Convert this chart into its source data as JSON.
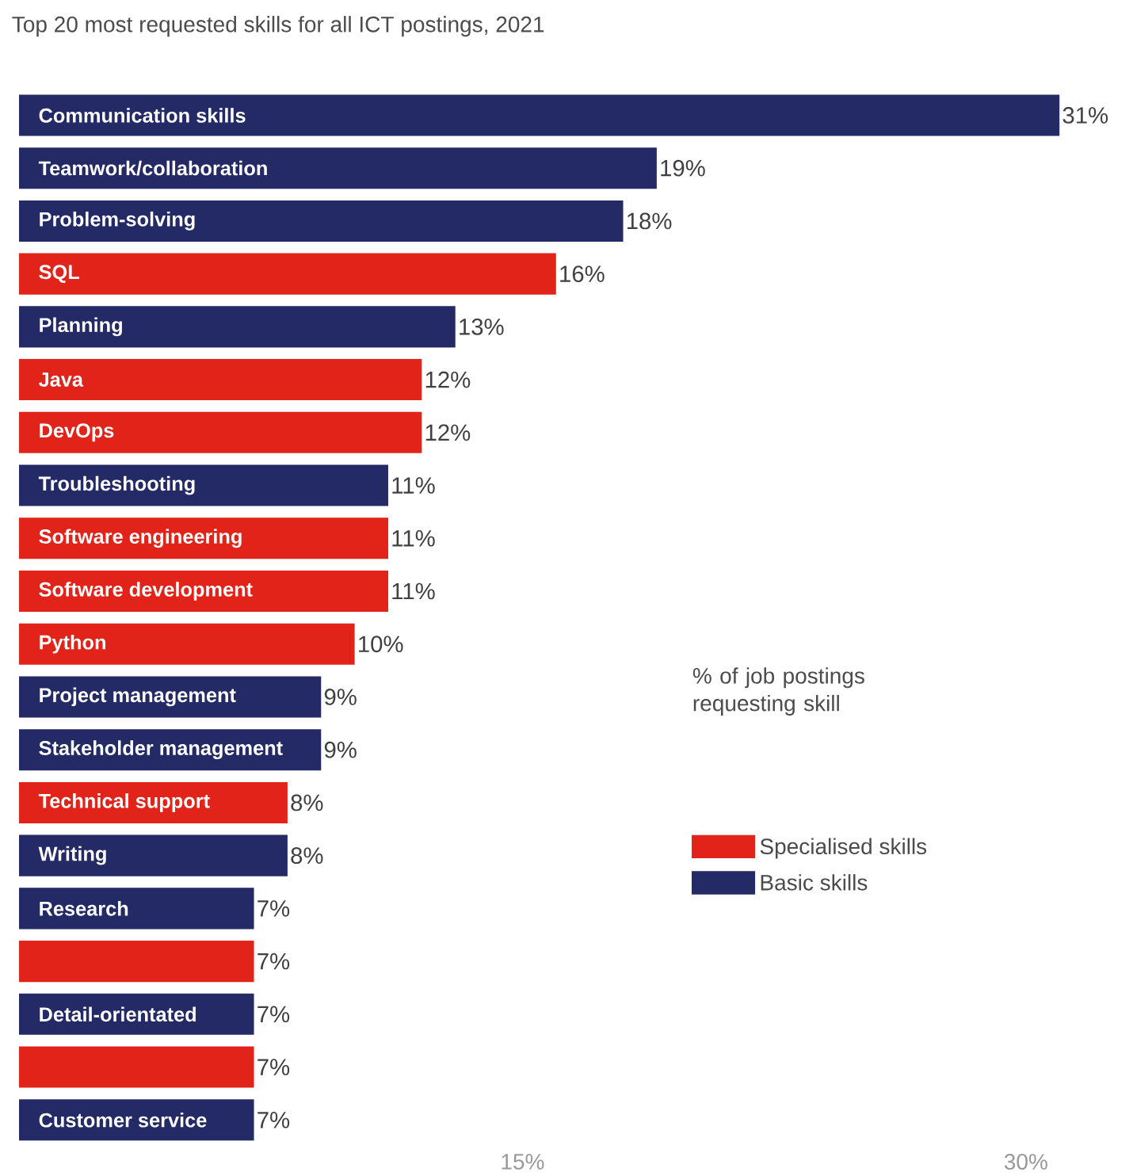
{
  "chart_data": {
    "type": "bar",
    "orientation": "horizontal",
    "title": "Top 20 most requested skills for all ICT postings, 2021",
    "categories": [
      "Communication skills",
      "Teamwork/collaboration",
      "Problem-solving",
      "SQL",
      "Planning",
      "Java",
      "DevOps",
      "Troubleshooting",
      "Software engineering",
      "Software development",
      "Python",
      "Project management",
      "Stakeholder management",
      "Technical support",
      "Writing",
      "Research",
      null,
      "Detail-orientated",
      null,
      "Customer service"
    ],
    "series": [
      {
        "name": "Specialised skills",
        "color": "#e2231a",
        "values": [
          null,
          null,
          null,
          16,
          null,
          12,
          12,
          null,
          11,
          11,
          10,
          null,
          null,
          8,
          null,
          null,
          7,
          null,
          7,
          null
        ],
        "value_labels": [
          null,
          null,
          null,
          "16%",
          null,
          "12%",
          "12%",
          null,
          "11%",
          "11%",
          "10%",
          null,
          null,
          "8%",
          null,
          null,
          "7%",
          null,
          "7%",
          null
        ]
      },
      {
        "name": "Basic skills",
        "color": "#232a66",
        "values": [
          31,
          19,
          18,
          null,
          13,
          null,
          null,
          11,
          null,
          null,
          null,
          9,
          9,
          null,
          8,
          7,
          null,
          7,
          null,
          7
        ],
        "value_labels": [
          "31%",
          "19%",
          "18%",
          null,
          "13%",
          null,
          null,
          "11%",
          null,
          null,
          null,
          "9%",
          "9%",
          null,
          "8%",
          "7%",
          null,
          "7%",
          null,
          "7%"
        ]
      }
    ],
    "xticks": [
      {
        "value": 15,
        "label": "15%"
      },
      {
        "value": 30,
        "label": "30%"
      }
    ],
    "xlim": [
      0,
      31
    ],
    "legend": "right",
    "annotations": [
      "% of job postings requesting skill"
    ]
  }
}
